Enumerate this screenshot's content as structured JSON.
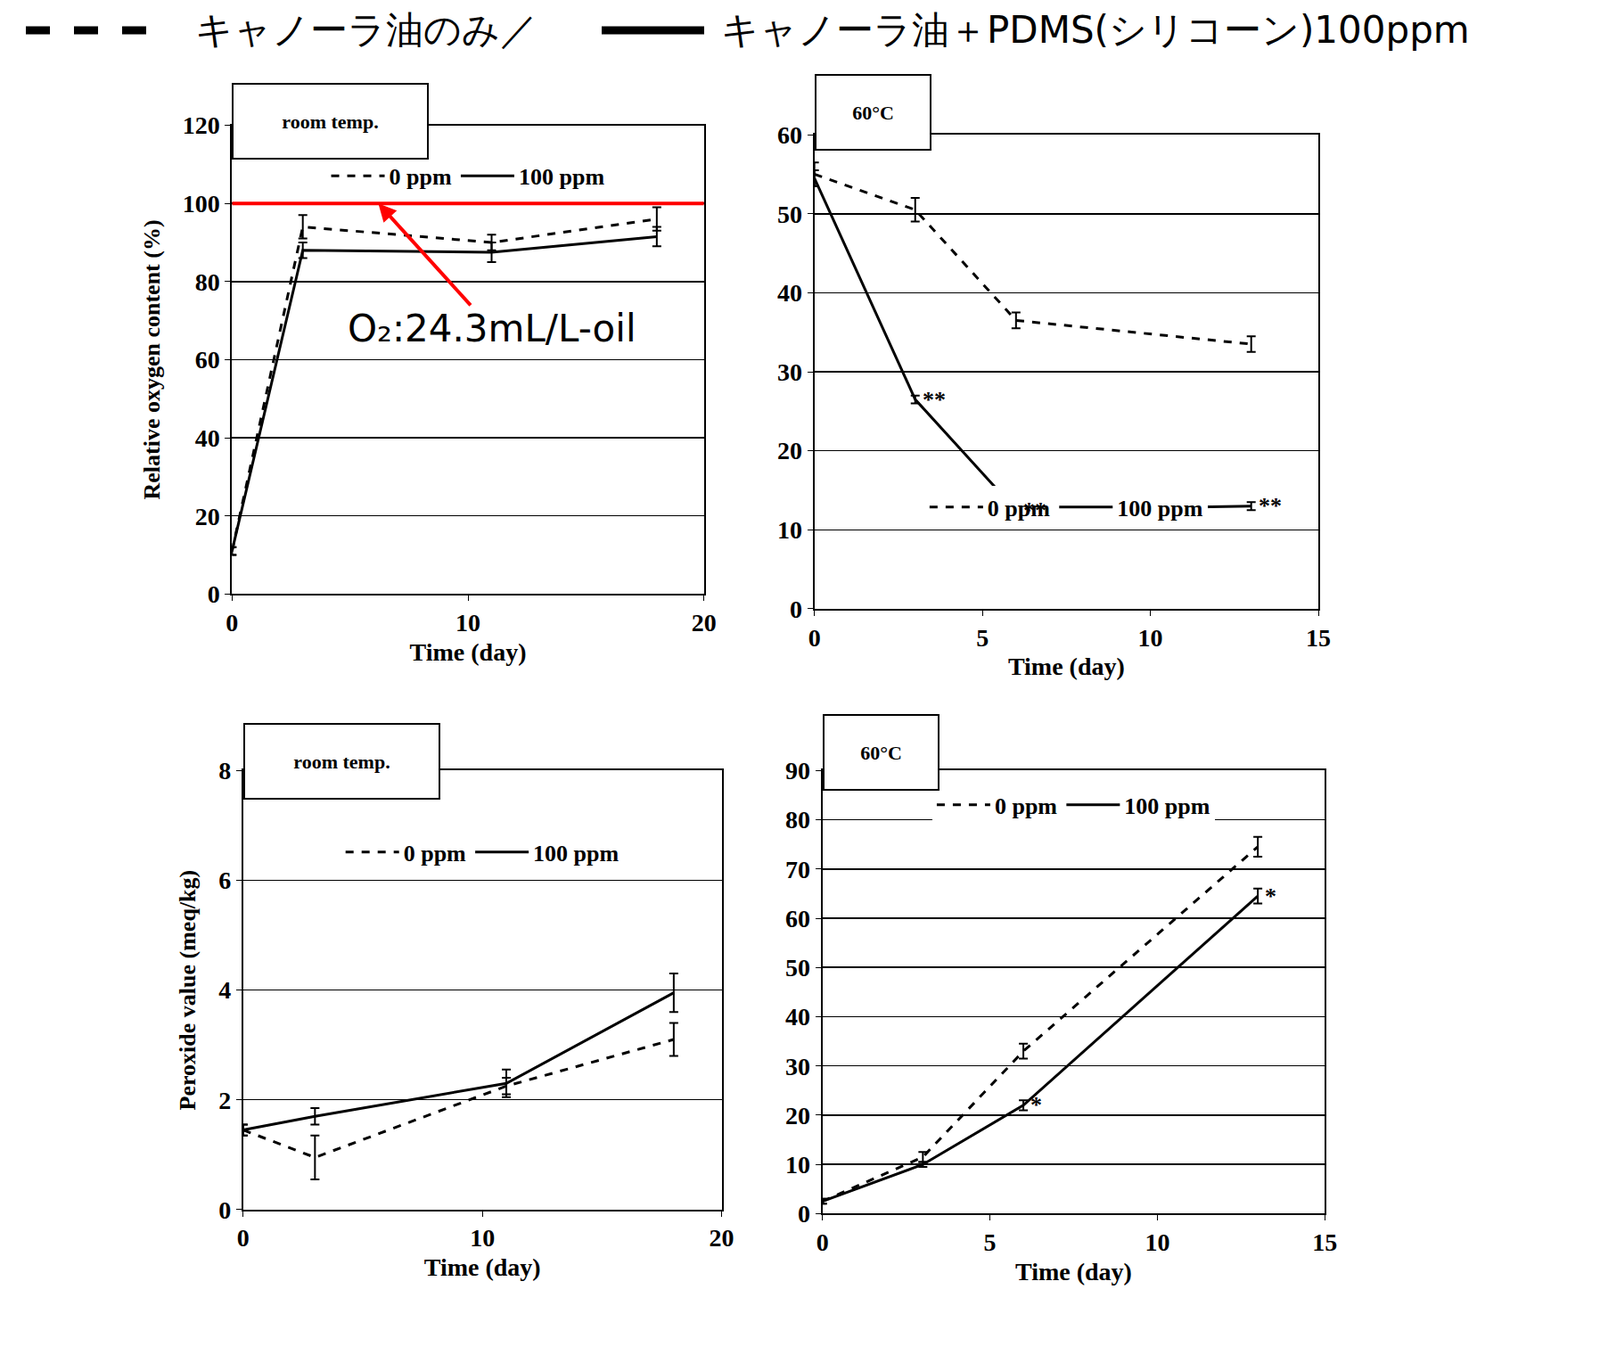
{
  "header": [
    {
      "text": "キャノーラ油のみ／",
      "line_style": "dash"
    },
    {
      "text": "キャノーラ油＋PDMS(シリコーン)100ppm",
      "line_style": "solid"
    }
  ],
  "chart_data": [
    {
      "type": "line",
      "title": "room temp.",
      "x": [
        0,
        3,
        11,
        18
      ],
      "x_label": "Time (day)",
      "y_label": "Relative oxygen content (%)",
      "xlim": [
        0,
        20
      ],
      "xticks": [
        0,
        10,
        20
      ],
      "ylim": [
        0,
        120
      ],
      "yticks": [
        0,
        20,
        40,
        60,
        80,
        100,
        120
      ],
      "grid": true,
      "legend": "top",
      "series": [
        {
          "name": "0 ppm",
          "color": "#000000",
          "line_style": "dash",
          "values": [
            11,
            94,
            90,
            96
          ],
          "errors": [
            1,
            3,
            2,
            3
          ]
        },
        {
          "name": "100 ppm",
          "color": "#000000",
          "line_style": "solid",
          "values": [
            11,
            88,
            87.5,
            91.5
          ],
          "errors": [
            1,
            2,
            2.5,
            2.5
          ]
        },
        {
          "type": "hline",
          "color": "#ff0000",
          "line_style": "solid",
          "x": [
            0,
            20
          ],
          "values": [
            100,
            100
          ]
        }
      ],
      "annotations": [
        {
          "text": "O₂:24.3mL/L-oil",
          "x": 11,
          "y": 68,
          "arrow_x": 6.2,
          "arrow_y": 100
        }
      ]
    },
    {
      "type": "line",
      "title": "60°C",
      "x": [
        0,
        3,
        6,
        13
      ],
      "x_label": "Time (day)",
      "xlim": [
        0,
        15
      ],
      "xticks": [
        0,
        5,
        10,
        15
      ],
      "ylim": [
        0,
        60
      ],
      "yticks": [
        0,
        10,
        20,
        30,
        40,
        50,
        60
      ],
      "grid": true,
      "legend": "bottom",
      "series": [
        {
          "name": "0 ppm",
          "color": "#000000",
          "line_style": "dash",
          "values": [
            55,
            50.5,
            36.5,
            33.5
          ],
          "errors": [
            1.5,
            1.5,
            1,
            1
          ]
        },
        {
          "name": "100 ppm",
          "color": "#000000",
          "line_style": "solid",
          "values": [
            54.5,
            26.5,
            12.5,
            13
          ],
          "errors": [
            1,
            0.5,
            0.5,
            0.5
          ],
          "significance": [
            null,
            "**",
            "**",
            "**"
          ]
        }
      ]
    },
    {
      "type": "line",
      "title": "room temp.",
      "x": [
        0,
        3,
        11,
        18
      ],
      "x_label": "Time (day)",
      "y_label": "Peroxide value (meq/kg)",
      "xlim": [
        0,
        20
      ],
      "xticks": [
        0,
        10,
        20
      ],
      "ylim": [
        0,
        8
      ],
      "yticks": [
        0,
        2,
        4,
        6,
        8
      ],
      "grid": true,
      "legend": "top",
      "series": [
        {
          "name": "0 ppm",
          "color": "#000000",
          "line_style": "dash",
          "values": [
            1.45,
            0.95,
            2.25,
            3.1
          ],
          "errors": [
            0.1,
            0.4,
            0.15,
            0.3
          ]
        },
        {
          "name": "100 ppm",
          "color": "#000000",
          "line_style": "solid",
          "values": [
            1.45,
            1.7,
            2.3,
            3.95
          ],
          "errors": [
            0.1,
            0.15,
            0.25,
            0.35
          ]
        }
      ]
    },
    {
      "type": "line",
      "title": "60°C",
      "x": [
        0,
        3,
        6,
        13
      ],
      "x_label": "Time (day)",
      "xlim": [
        0,
        15
      ],
      "xticks": [
        0,
        5,
        10,
        15
      ],
      "ylim": [
        0,
        90
      ],
      "yticks": [
        0,
        10,
        20,
        30,
        40,
        50,
        60,
        70,
        80,
        90
      ],
      "grid": true,
      "legend": "top",
      "series": [
        {
          "name": "0 ppm",
          "color": "#000000",
          "line_style": "dash",
          "values": [
            2.5,
            11.5,
            33,
            74.5
          ],
          "errors": [
            0.5,
            1,
            1.5,
            2
          ]
        },
        {
          "name": "100 ppm",
          "color": "#000000",
          "line_style": "solid",
          "values": [
            2.5,
            10,
            22,
            64.5
          ],
          "errors": [
            0.5,
            0.5,
            1,
            1.5
          ],
          "significance": [
            null,
            null,
            "*",
            "*"
          ]
        }
      ]
    }
  ]
}
